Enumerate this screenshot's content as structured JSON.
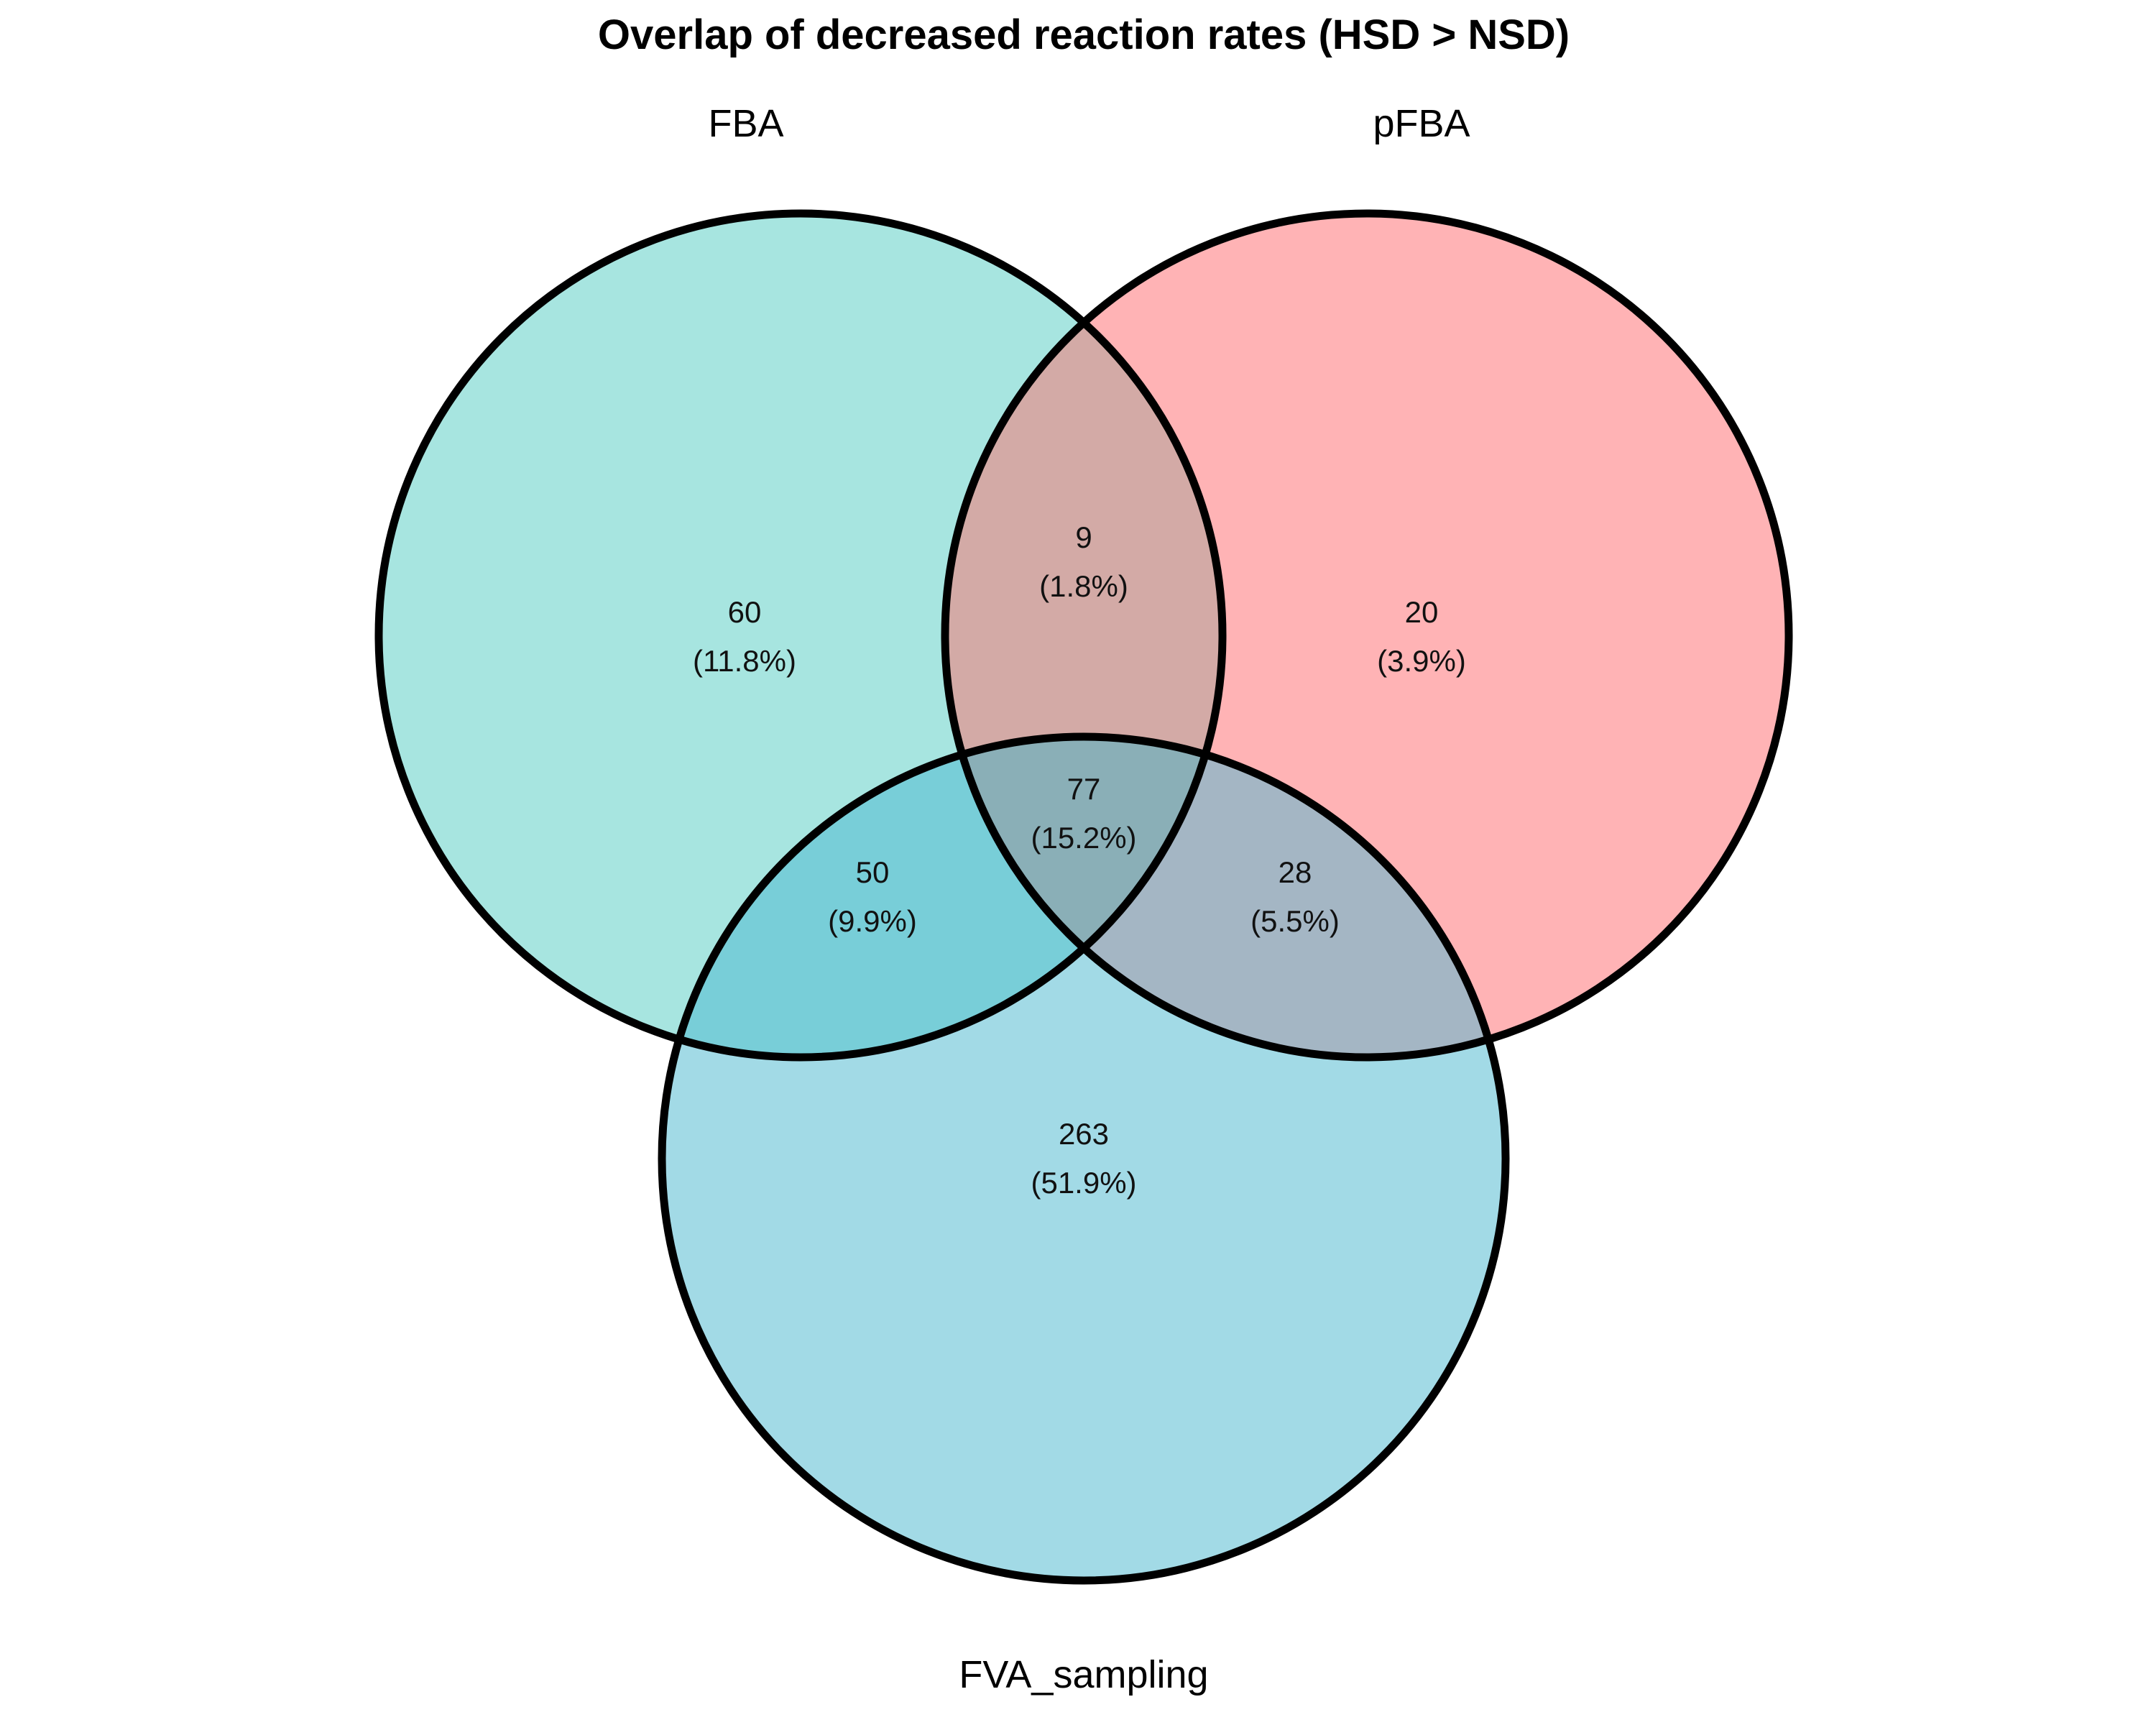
{
  "title": "Overlap of decreased reaction rates (HSD > NSD)",
  "sets": [
    {
      "key": "A",
      "label": "FBA",
      "color": "#a7e5e0"
    },
    {
      "key": "B",
      "label": "pFBA",
      "color": "#ffb3b5"
    },
    {
      "key": "C",
      "label": "FVA_sampling",
      "color": "#a2dae6"
    }
  ],
  "overlap_colors": {
    "AB": "#d3aaa6",
    "AC": "#78ced8",
    "BC": "#a4b6c4",
    "ABC": "#8aafb7"
  },
  "regions": {
    "A": {
      "count": "60",
      "percent": "(11.8%)"
    },
    "B": {
      "count": "20",
      "percent": "(3.9%)"
    },
    "C": {
      "count": "263",
      "percent": "(51.9%)"
    },
    "AB": {
      "count": "9",
      "percent": "(1.8%)"
    },
    "AC": {
      "count": "50",
      "percent": "(9.9%)"
    },
    "BC": {
      "count": "28",
      "percent": "(5.5%)"
    },
    "ABC": {
      "count": "77",
      "percent": "(15.2%)"
    }
  }
}
